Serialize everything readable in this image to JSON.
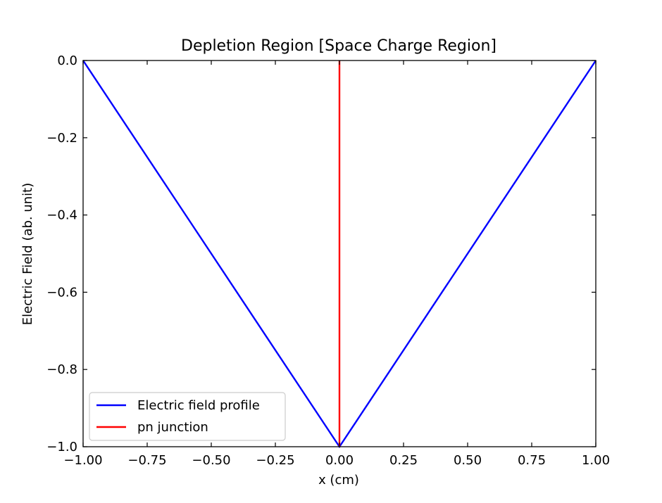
{
  "chart_data": {
    "type": "line",
    "title": "Depletion Region [Space Charge  Region]",
    "xlabel": "x (cm)",
    "ylabel": "Electric Field (ab. unit)",
    "xlim": [
      -1.0,
      1.0
    ],
    "ylim": [
      -1.0,
      0.0
    ],
    "x_ticks": [
      "−1.00",
      "−0.75",
      "−0.50",
      "−0.25",
      "0.00",
      "0.25",
      "0.50",
      "0.75",
      "1.00"
    ],
    "y_ticks": [
      "0.0",
      "−0.2",
      "−0.4",
      "−0.6",
      "−0.8",
      "−1.0"
    ],
    "grid": false,
    "legend_position": "lower-left",
    "series": [
      {
        "name": "Electric field profile",
        "color": "#0000ff",
        "x": [
          -1.0,
          0.0,
          1.0
        ],
        "y": [
          0.0,
          -1.0,
          0.0
        ]
      },
      {
        "name": "pn junction",
        "color": "#ff0000",
        "x": [
          0.0,
          0.0
        ],
        "y": [
          -1.0,
          0.0
        ]
      }
    ]
  }
}
